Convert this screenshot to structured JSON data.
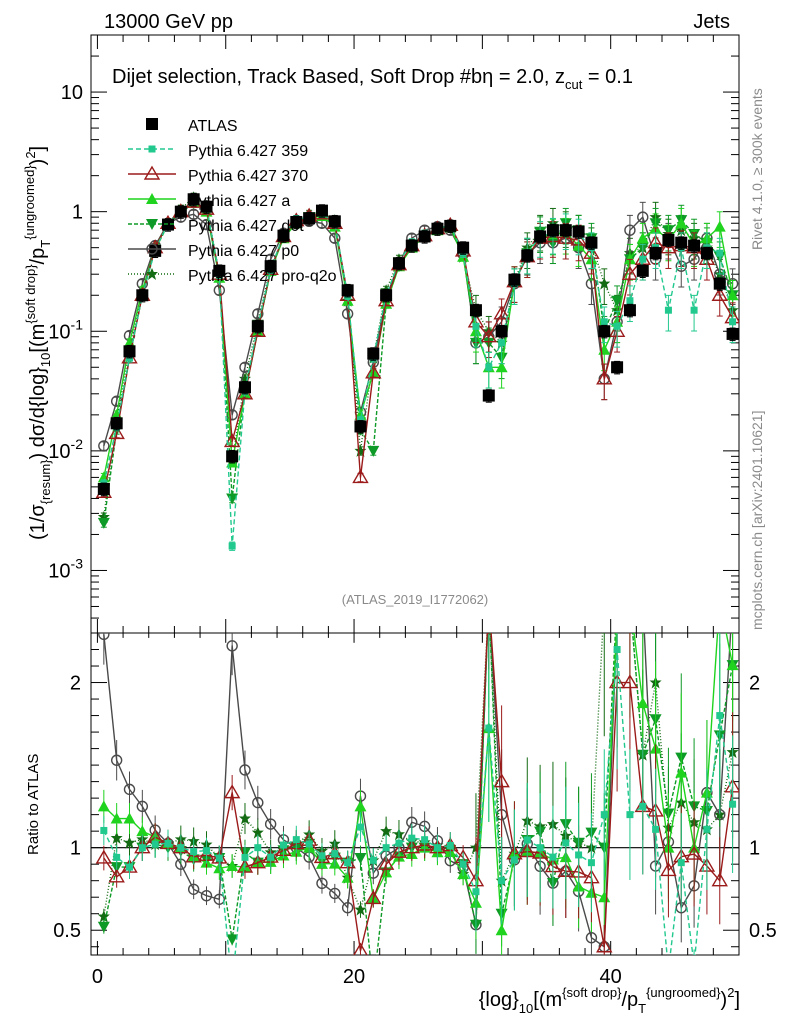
{
  "header": {
    "left": "13000 GeV pp",
    "right": "Jets"
  },
  "side_text": {
    "rivet": "Rivet 4.1.0, ≥ 300k events",
    "mcplots": "mcplots.cern.ch [arXiv:2401.10621]"
  },
  "watermark": "(ATLAS_2019_I1772062)",
  "chart_data": {
    "type": "scatter",
    "title": "Dijet selection, Track Based, Soft Drop #bη = 2.0, z_cut = 0.1",
    "title_parts": {
      "main": "Dijet selection, Track Based, Soft Drop #bη = 2.0, z",
      "sub": "cut",
      "tail": " = 0.1"
    },
    "xlabel": "{log}_10[(m^{soft drop}/p_T^{ungroomed})^2]",
    "xlabel_parts": {
      "a": "{log}",
      "b": "10",
      "c": "[(m",
      "d": "{soft drop}",
      "e": "/p",
      "f": "T",
      "g": "{ungroomed}",
      "h": ")",
      "i": "2",
      "j": "]"
    },
    "ylabel": "(1/σ_{resum}) dσ/d{log}_10[(m^{soft drop}/p_T^{ungroomed})^2]",
    "ylabel_parts": {
      "a": "(1/σ",
      "b": "{resum}",
      "c": ") dσ/d{log}",
      "d": "10",
      "e": "[(m",
      "f": "{soft drop}",
      "g": "/p",
      "h": "T",
      "i": "{ungroomed}",
      "j": ")",
      "k": "2",
      "l": "]"
    },
    "ratio_ylabel": "Ratio to ATLAS",
    "xlim": [
      -0.5,
      50
    ],
    "ylim": [
      0.0003,
      30
    ],
    "ratio_ylim": [
      0.35,
      2.3
    ],
    "x_ticks": [
      0,
      20,
      40
    ],
    "x_tick_labels": [
      "0",
      "20",
      "40"
    ],
    "y_ticks": [
      0.001,
      0.01,
      0.1,
      1,
      10
    ],
    "y_tick_labels": [
      "10^-3",
      "10^-2",
      "10^-1",
      "1",
      "10"
    ],
    "ratio_ticks": [
      0.5,
      1,
      2
    ],
    "ratio_tick_labels": [
      "0.5",
      "1",
      "2"
    ],
    "x": [
      0.5,
      1.5,
      2.5,
      3.5,
      4.5,
      5.5,
      6.5,
      7.5,
      8.5,
      9.5,
      10.5,
      11.5,
      12.5,
      13.5,
      14.5,
      15.5,
      16.5,
      17.5,
      18.5,
      19.5,
      20.5,
      21.5,
      22.5,
      23.5,
      24.5,
      25.5,
      26.5,
      27.5,
      28.5,
      29.5,
      30.5,
      31.5,
      32.5,
      33.5,
      34.5,
      35.5,
      36.5,
      37.5,
      38.5,
      39.5,
      40.5,
      41.5,
      42.5,
      43.5,
      44.5,
      45.5,
      46.5,
      47.5,
      48.5,
      49.5
    ],
    "series": [
      {
        "name": "ATLAS",
        "color": "#000000",
        "marker": "square",
        "dash": "none",
        "values": [
          0.0048,
          0.017,
          0.068,
          0.2,
          0.47,
          0.78,
          1.0,
          1.27,
          1.1,
          0.32,
          0.009,
          0.034,
          0.11,
          0.35,
          0.63,
          0.82,
          0.88,
          1.02,
          0.83,
          0.22,
          0.016,
          0.065,
          0.2,
          0.37,
          0.52,
          0.62,
          0.72,
          0.76,
          0.5,
          0.15,
          0.029,
          0.1,
          0.27,
          0.43,
          0.62,
          0.7,
          0.7,
          0.68,
          0.55,
          0.1,
          0.05,
          0.15,
          0.32,
          0.45,
          0.58,
          0.55,
          0.52,
          0.45,
          0.25,
          0.095
        ]
      },
      {
        "name": "Pythia 6.427 359",
        "color": "#22c98e",
        "marker": "smallsquare",
        "dash": "5,3",
        "values": [
          0.0053,
          0.016,
          0.06,
          0.2,
          0.48,
          0.8,
          1.0,
          1.24,
          1.08,
          0.3,
          0.0016,
          0.032,
          0.11,
          0.33,
          0.64,
          0.86,
          0.9,
          0.97,
          0.8,
          0.2,
          0.018,
          0.06,
          0.2,
          0.38,
          0.55,
          0.65,
          0.72,
          0.77,
          0.45,
          0.11,
          0.05,
          0.08,
          0.25,
          0.45,
          0.62,
          0.66,
          0.72,
          0.65,
          0.5,
          0.12,
          0.11,
          0.18,
          0.4,
          0.5,
          0.15,
          0.5,
          0.15,
          0.5,
          0.45,
          0.12
        ]
      },
      {
        "name": "Pythia 6.427 370",
        "color": "#9b1b1b",
        "marker": "triangle-open",
        "dash": "none",
        "values": [
          0.0045,
          0.014,
          0.06,
          0.2,
          0.5,
          0.8,
          1.0,
          1.2,
          1.05,
          0.3,
          0.012,
          0.03,
          0.1,
          0.33,
          0.62,
          0.84,
          0.92,
          0.96,
          0.8,
          0.2,
          0.006,
          0.045,
          0.18,
          0.36,
          0.52,
          0.63,
          0.72,
          0.77,
          0.47,
          0.12,
          0.09,
          0.14,
          0.26,
          0.42,
          0.6,
          0.62,
          0.6,
          0.58,
          0.45,
          0.04,
          0.1,
          0.3,
          0.4,
          0.55,
          0.5,
          0.52,
          0.5,
          0.4,
          0.2,
          0.13
        ]
      },
      {
        "name": "Pythia 6.427 a",
        "color": "#1fd31f",
        "marker": "triangle",
        "dash": "none",
        "values": [
          0.006,
          0.02,
          0.08,
          0.22,
          0.5,
          0.8,
          1.0,
          1.2,
          1.0,
          0.28,
          0.008,
          0.03,
          0.1,
          0.32,
          0.6,
          0.8,
          0.88,
          0.92,
          0.75,
          0.18,
          0.02,
          0.045,
          0.17,
          0.35,
          0.5,
          0.62,
          0.7,
          0.74,
          0.42,
          0.1,
          0.05,
          0.05,
          0.26,
          0.42,
          0.6,
          0.65,
          0.66,
          0.52,
          0.4,
          0.07,
          0.12,
          0.4,
          0.6,
          0.72,
          0.58,
          0.8,
          0.52,
          0.6,
          0.75,
          0.2
        ]
      },
      {
        "name": "Pythia 6.427 d6t",
        "color": "#0e9a26",
        "marker": "triangle-down",
        "dash": "4,2",
        "values": [
          0.0025,
          0.015,
          0.06,
          0.2,
          0.48,
          0.78,
          0.98,
          1.18,
          1.02,
          0.3,
          0.004,
          0.033,
          0.1,
          0.32,
          0.62,
          0.82,
          0.9,
          0.94,
          0.78,
          0.2,
          0.015,
          0.01,
          0.17,
          0.35,
          0.52,
          0.62,
          0.7,
          0.75,
          0.45,
          0.08,
          0.08,
          0.06,
          0.25,
          0.45,
          0.68,
          0.55,
          0.8,
          0.7,
          0.6,
          0.1,
          0.18,
          0.4,
          0.5,
          0.8,
          0.7,
          0.85,
          0.65,
          0.55,
          0.42,
          0.2
        ]
      },
      {
        "name": "Pythia 6.427 p0",
        "color": "#4a4a4a",
        "marker": "circle-open",
        "dash": "none",
        "values": [
          0.011,
          0.026,
          0.092,
          0.25,
          0.52,
          0.8,
          0.9,
          0.95,
          0.78,
          0.22,
          0.02,
          0.05,
          0.14,
          0.4,
          0.66,
          0.82,
          0.83,
          0.8,
          0.6,
          0.14,
          0.021,
          0.055,
          0.19,
          0.37,
          0.6,
          0.7,
          0.75,
          0.7,
          0.44,
          0.08,
          0.09,
          0.12,
          0.25,
          0.44,
          0.55,
          0.55,
          0.6,
          0.5,
          0.25,
          0.04,
          0.12,
          0.7,
          0.9,
          0.4,
          0.6,
          0.35,
          0.4,
          0.6,
          0.3,
          0.25
        ]
      },
      {
        "name": "Pythia 6.427 pro-q2o",
        "color": "#136b13",
        "marker": "star",
        "dash": "1,2",
        "values": [
          0.0028,
          0.018,
          0.07,
          0.21,
          0.48,
          0.8,
          1.05,
          1.32,
          1.12,
          0.3,
          0.008,
          0.04,
          0.12,
          0.34,
          0.62,
          0.84,
          0.95,
          1.0,
          0.85,
          0.18,
          0.01,
          0.06,
          0.22,
          0.4,
          0.54,
          0.64,
          0.73,
          0.75,
          0.42,
          0.15,
          0.1,
          0.08,
          0.26,
          0.5,
          0.7,
          0.8,
          0.75,
          0.7,
          0.55,
          0.25,
          0.15,
          0.45,
          0.5,
          0.9,
          0.65,
          0.7,
          0.6,
          0.5,
          0.3,
          0.15
        ]
      }
    ]
  }
}
